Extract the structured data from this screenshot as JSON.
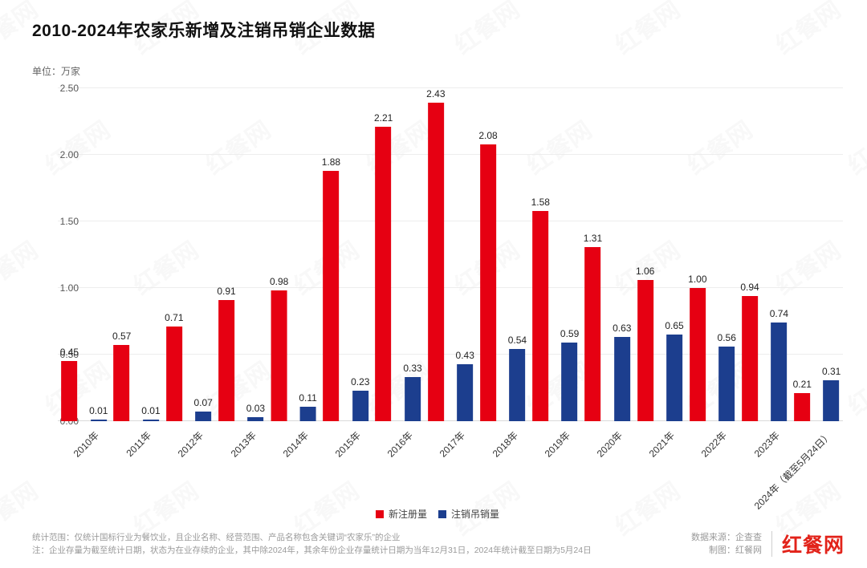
{
  "header": {
    "title": "2010-2024年农家乐新增及注销吊销企业数据",
    "unit_label": "单位：万家"
  },
  "chart_data": {
    "type": "bar",
    "title": "2010-2024年农家乐新增及注销吊销企业数据",
    "ylabel": "万家",
    "ylim": [
      0,
      2.5
    ],
    "yticks": [
      0.0,
      0.5,
      1.0,
      1.5,
      2.0,
      2.5
    ],
    "grid": true,
    "legend_position": "bottom",
    "categories": [
      "2010年",
      "2011年",
      "2012年",
      "2013年",
      "2014年",
      "2015年",
      "2016年",
      "2017年",
      "2018年",
      "2019年",
      "2020年",
      "2021年",
      "2022年",
      "2023年",
      "2024年（截至5月24日）"
    ],
    "series": [
      {
        "name": "新注册量",
        "color": "#e60012",
        "values": [
          0.45,
          0.57,
          0.71,
          0.91,
          0.98,
          1.88,
          2.21,
          2.43,
          2.08,
          1.58,
          1.31,
          1.06,
          1.0,
          0.94,
          0.21
        ]
      },
      {
        "name": "注销吊销量",
        "color": "#1c3e8e",
        "values": [
          0.01,
          0.01,
          0.07,
          0.03,
          0.11,
          0.23,
          0.33,
          0.43,
          0.54,
          0.59,
          0.63,
          0.65,
          0.56,
          0.74,
          0.31
        ]
      }
    ]
  },
  "footer": {
    "note_line1": "统计范围：仅统计国标行业为餐饮业，且企业名称、经营范围、产品名称包含关键词“农家乐”的企业",
    "note_line2": "注：企业存量为截至统计日期，状态为在业存续的企业，其中除2024年，其余年份企业存量统计日期为当年12月31日，2024年统计截至日期为5月24日",
    "source_line1": "数据来源：企查查",
    "source_line2": "制图：红餐网",
    "logo_text": "红餐网",
    "logo_color": "#e2231a"
  },
  "watermark": {
    "text": "红餐网"
  }
}
